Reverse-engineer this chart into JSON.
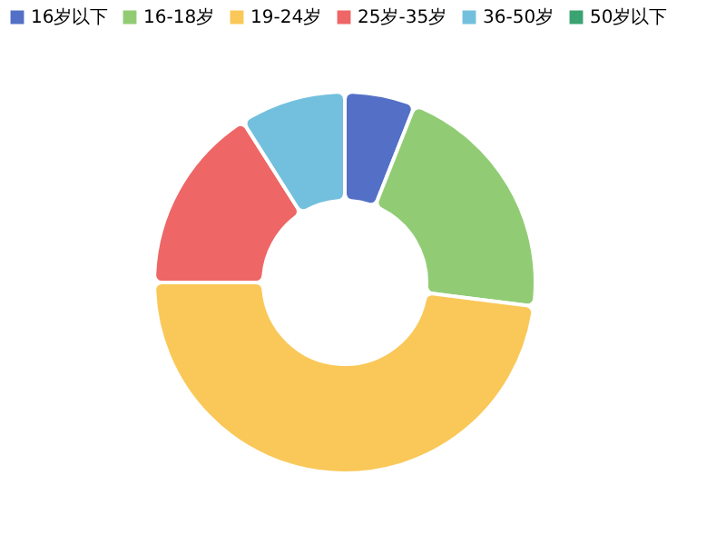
{
  "chart_data": {
    "type": "donut",
    "categories": [
      "16岁以下",
      "16-18岁",
      "19-24岁",
      "25岁-35岁",
      "36-50岁",
      "50岁以下"
    ],
    "values": [
      6,
      21,
      48,
      16,
      9,
      0
    ],
    "colors": [
      "#5470c6",
      "#91cc75",
      "#fac858",
      "#ee6666",
      "#73c0de",
      "#3ba272"
    ],
    "legend": "top"
  }
}
